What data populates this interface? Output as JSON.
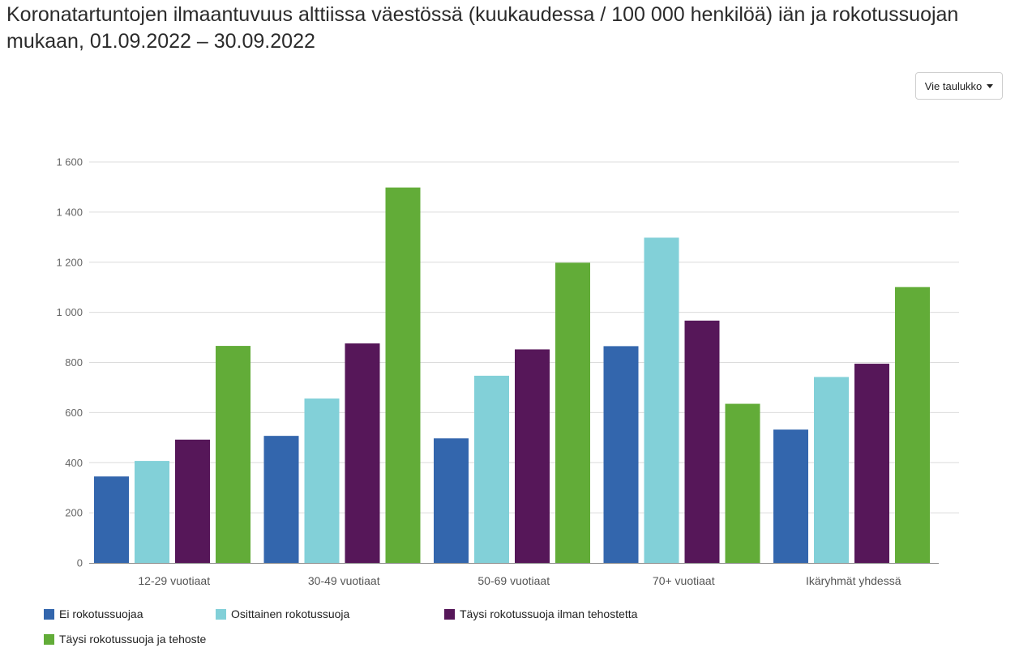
{
  "title": "Koronatartuntojen ilmaantuvuus alttiissa väestössä (kuukaudessa / 100 000 henkilöä) iän ja rokotussuojan mukaan, 01.09.2022 – 30.09.2022",
  "export_button": {
    "label": "Vie taulukko"
  },
  "chart_data": {
    "type": "bar",
    "title": "Koronatartuntojen ilmaantuvuus alttiissa väestössä (kuukaudessa / 100 000 henkilöä) iän ja rokotussuojan mukaan, 01.09.2022 – 30.09.2022",
    "xlabel": "",
    "ylabel": "",
    "ylim": [
      0,
      1600
    ],
    "yticks": [
      0,
      200,
      400,
      600,
      800,
      1000,
      1200,
      1400,
      1600
    ],
    "ytick_labels": [
      "0",
      "200",
      "400",
      "600",
      "800",
      "1 000",
      "1 200",
      "1 400",
      "1 600"
    ],
    "grid": true,
    "legend_position": "bottom-left",
    "categories": [
      "12-29 vuotiaat",
      "30-49 vuotiaat",
      "50-69 vuotiaat",
      "70+ vuotiaat",
      "Ikäryhmät yhdessä"
    ],
    "series": [
      {
        "name": "Ei rokotussuojaa",
        "color": "#3366ad",
        "values": [
          345,
          507,
          497,
          865,
          532
        ]
      },
      {
        "name": "Osittainen rokotussuoja",
        "color": "#82d0d8",
        "values": [
          407,
          656,
          747,
          1298,
          742
        ]
      },
      {
        "name": "Täysi rokotussuoja ilman tehostetta",
        "color": "#561759",
        "values": [
          492,
          876,
          852,
          967,
          795
        ]
      },
      {
        "name": "Täysi rokotussuoja ja tehoste",
        "color": "#62ac38",
        "values": [
          866,
          1498,
          1198,
          635,
          1101
        ]
      }
    ]
  }
}
